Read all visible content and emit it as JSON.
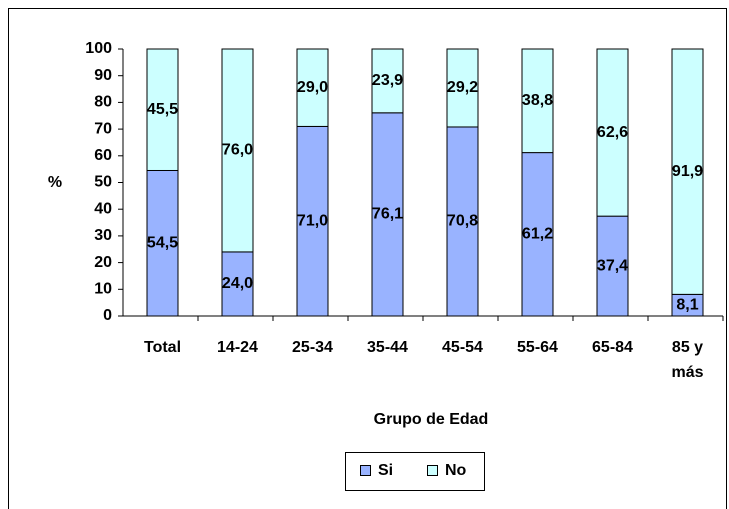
{
  "chart_data": {
    "type": "stacked_bar",
    "categories": [
      "Total",
      "14-24",
      "25-34",
      "35-44",
      "45-54",
      "55-64",
      "65-84",
      "85 y más"
    ],
    "series": [
      {
        "name": "Si",
        "color": "#99b3ff",
        "values": [
          54.5,
          24.0,
          71.0,
          76.1,
          70.8,
          61.2,
          37.4,
          8.1
        ],
        "value_labels": [
          "54,5",
          "24,0",
          "71,0",
          "76,1",
          "70,8",
          "61,2",
          "37,4",
          "8,1"
        ]
      },
      {
        "name": "No",
        "color": "#ccffff",
        "values": [
          45.5,
          76.0,
          29.0,
          23.9,
          29.2,
          38.8,
          62.6,
          91.9
        ],
        "value_labels": [
          "45,5",
          "76,0",
          "29,0",
          "23,9",
          "29,2",
          "38,8",
          "62,6",
          "91,9"
        ]
      }
    ],
    "ylabel": "%",
    "xlabel": "Grupo de Edad",
    "ylim": [
      0,
      100
    ],
    "yticks": [
      0,
      10,
      20,
      30,
      40,
      50,
      60,
      70,
      80,
      90,
      100
    ],
    "legend": "bottom"
  }
}
